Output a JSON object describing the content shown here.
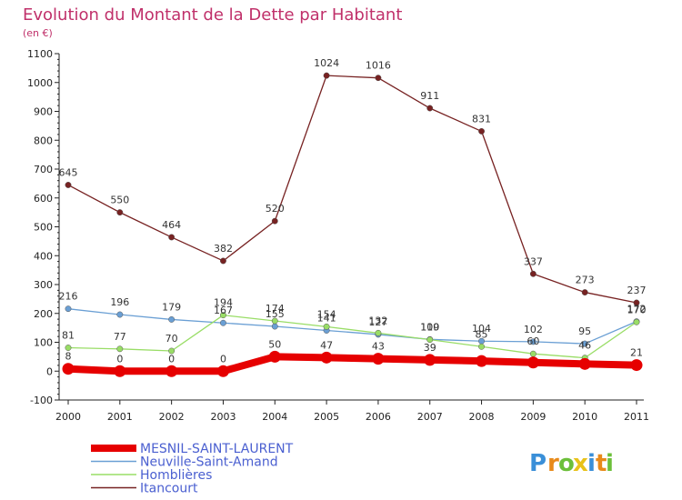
{
  "chart_data": {
    "type": "line",
    "title": "Evolution du Montant de la Dette par Habitant",
    "subtitle": "(en €)",
    "xlabel": "",
    "ylabel": "",
    "x": [
      "2000",
      "2001",
      "2002",
      "2003",
      "2004",
      "2005",
      "2006",
      "2007",
      "2008",
      "2009",
      "2010",
      "2011"
    ],
    "ylim": [
      -100,
      1100
    ],
    "yticks": [
      -100,
      0,
      100,
      200,
      300,
      400,
      500,
      600,
      700,
      800,
      900,
      1000,
      1100
    ],
    "grid": false,
    "legend_position": "bottom-left",
    "series": [
      {
        "name": "MESNIL-SAINT-LAURENT",
        "color": "#e60000",
        "values": [
          8,
          0,
          0,
          0,
          50,
          47,
          43,
          39,
          35,
          30,
          25,
          21
        ],
        "labels": [
          "8",
          "0",
          "0",
          "0",
          "50",
          "47",
          "43",
          "39",
          "",
          "",
          "",
          "21"
        ]
      },
      {
        "name": "Neuville-Saint-Amand",
        "color": "#6a9fd4",
        "values": [
          216,
          196,
          179,
          167,
          155,
          141,
          127,
          110,
          104,
          102,
          95,
          172
        ],
        "labels": [
          "216",
          "196",
          "179",
          "167",
          "155",
          "141",
          "127",
          "110",
          "104",
          "102",
          "95",
          "172"
        ]
      },
      {
        "name": "Homblières",
        "color": "#99dd66",
        "values": [
          81,
          77,
          70,
          194,
          174,
          154,
          132,
          109,
          85,
          60,
          46,
          170
        ],
        "labels": [
          "81",
          "77",
          "70",
          "194",
          "174",
          "154",
          "132",
          "109",
          "85",
          "60",
          "46",
          "170"
        ]
      },
      {
        "name": "Itancourt",
        "color": "#772222",
        "values": [
          645,
          550,
          464,
          382,
          520,
          1024,
          1016,
          911,
          831,
          337,
          273,
          237
        ],
        "labels": [
          "645",
          "550",
          "464",
          "382",
          "520",
          "1024",
          "1016",
          "911",
          "831",
          "337",
          "273",
          "237"
        ]
      }
    ]
  },
  "branding": {
    "logo_letters": [
      "P",
      "r",
      "o",
      "x",
      "i",
      "t",
      "i"
    ],
    "logo_colors": [
      "#3a8fd8",
      "#e88a1a",
      "#6cbf3a",
      "#e8c21a",
      "#3a8fd8",
      "#e88a1a",
      "#6cbf3a"
    ]
  }
}
